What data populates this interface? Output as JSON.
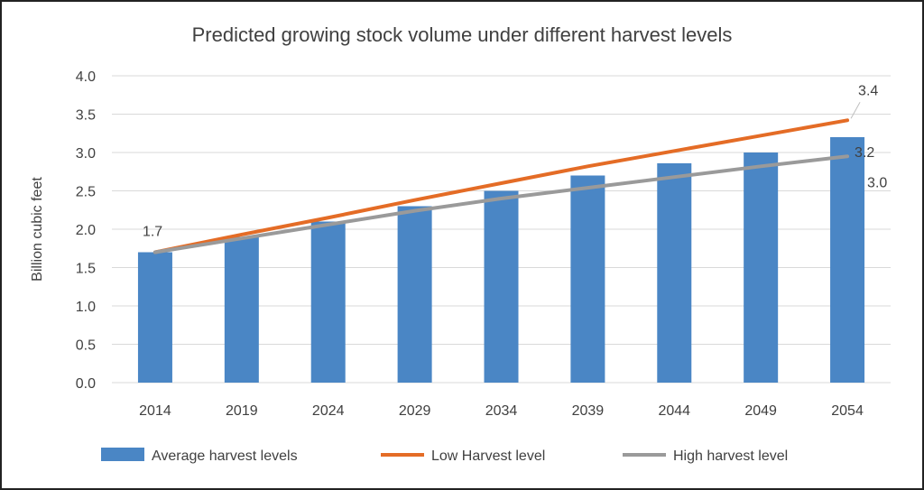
{
  "chart_data": {
    "type": "bar",
    "title": "Predicted growing stock volume under different harvest levels",
    "xlabel": "",
    "ylabel": "Billion cubic feet",
    "categories": [
      "2014",
      "2019",
      "2024",
      "2029",
      "2034",
      "2039",
      "2044",
      "2049",
      "2054"
    ],
    "ylim": [
      0,
      4.0
    ],
    "yticks": [
      "0.0",
      "0.5",
      "1.0",
      "1.5",
      "2.0",
      "2.5",
      "3.0",
      "3.5",
      "4.0"
    ],
    "grid": true,
    "legend_position": "bottom",
    "series": [
      {
        "name": "Average harvest levels",
        "kind": "bar",
        "color": "#4A86C5",
        "values": [
          1.7,
          1.9,
          2.1,
          2.3,
          2.5,
          2.7,
          2.86,
          3.0,
          3.2
        ]
      },
      {
        "name": "Low Harvest level",
        "kind": "line",
        "color": "#E46C26",
        "values": [
          1.7,
          1.93,
          2.15,
          2.38,
          2.6,
          2.82,
          3.02,
          3.22,
          3.42
        ]
      },
      {
        "name": "High harvest level",
        "kind": "line",
        "color": "#9A9A9A",
        "values": [
          1.7,
          1.88,
          2.06,
          2.24,
          2.4,
          2.54,
          2.68,
          2.82,
          2.95
        ]
      }
    ],
    "annotations": [
      {
        "text": "1.7",
        "series": 0,
        "index": 0
      },
      {
        "text": "3.4",
        "series": 1,
        "index": 8
      },
      {
        "text": "3.2",
        "series": 0,
        "index": 8
      },
      {
        "text": "3.0",
        "series": 2,
        "index": 8
      }
    ]
  }
}
